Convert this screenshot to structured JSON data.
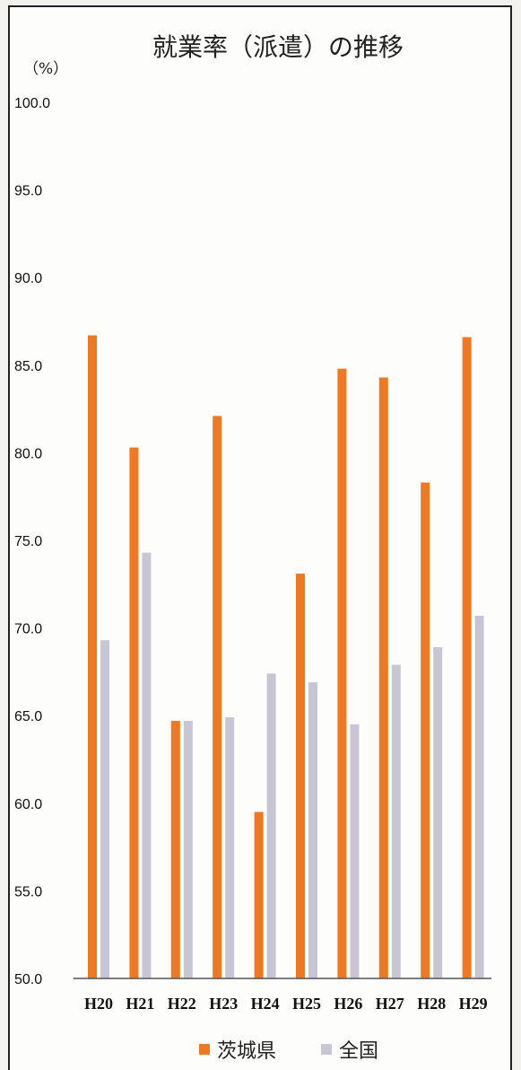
{
  "chart_data": {
    "type": "bar",
    "title": "就業率（派遣）の推移",
    "unit_label": "（%）",
    "categories": [
      "H20",
      "H21",
      "H22",
      "H23",
      "H24",
      "H25",
      "H26",
      "H27",
      "H28",
      "H29"
    ],
    "ylim": [
      50,
      100
    ],
    "yticks": [
      "50.0",
      "55.0",
      "60.0",
      "65.0",
      "70.0",
      "75.0",
      "80.0",
      "85.0",
      "90.0",
      "95.0",
      "100.0"
    ],
    "grid": false,
    "legend_position": "bottom",
    "series": [
      {
        "name": "茨城県",
        "color": "#f07820",
        "values": [
          86.7,
          80.3,
          64.7,
          82.1,
          59.5,
          73.1,
          84.8,
          84.3,
          78.3,
          86.6
        ]
      },
      {
        "name": "全国",
        "color": "#c8c6d4",
        "values": [
          69.3,
          74.3,
          64.7,
          64.9,
          67.4,
          66.9,
          64.5,
          67.9,
          68.9,
          70.7
        ]
      }
    ]
  }
}
